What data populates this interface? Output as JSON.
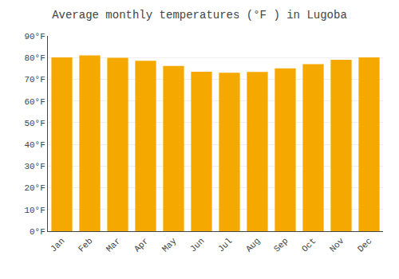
{
  "chart_data": {
    "type": "bar",
    "title": "Average monthly temperatures (°F ) in Lugoba",
    "categories": [
      "Jan",
      "Feb",
      "Mar",
      "Apr",
      "May",
      "Jun",
      "Jul",
      "Aug",
      "Sep",
      "Oct",
      "Nov",
      "Dec"
    ],
    "values": [
      80.1,
      81.0,
      79.9,
      78.5,
      76.1,
      73.5,
      73.0,
      73.4,
      75.0,
      77.0,
      79.0,
      80.1
    ],
    "color": "#F5A800",
    "ylim": [
      0,
      90
    ],
    "yticks": [
      {
        "value": 0,
        "label": "0°F"
      },
      {
        "value": 10,
        "label": "10°F"
      },
      {
        "value": 20,
        "label": "20°F"
      },
      {
        "value": 30,
        "label": "30°F"
      },
      {
        "value": 40,
        "label": "40°F"
      },
      {
        "value": 50,
        "label": "50°F"
      },
      {
        "value": 60,
        "label": "60°F"
      },
      {
        "value": 70,
        "label": "70°F"
      },
      {
        "value": 80,
        "label": "80°F"
      },
      {
        "value": 90,
        "label": "90°F"
      }
    ],
    "grid": true
  }
}
